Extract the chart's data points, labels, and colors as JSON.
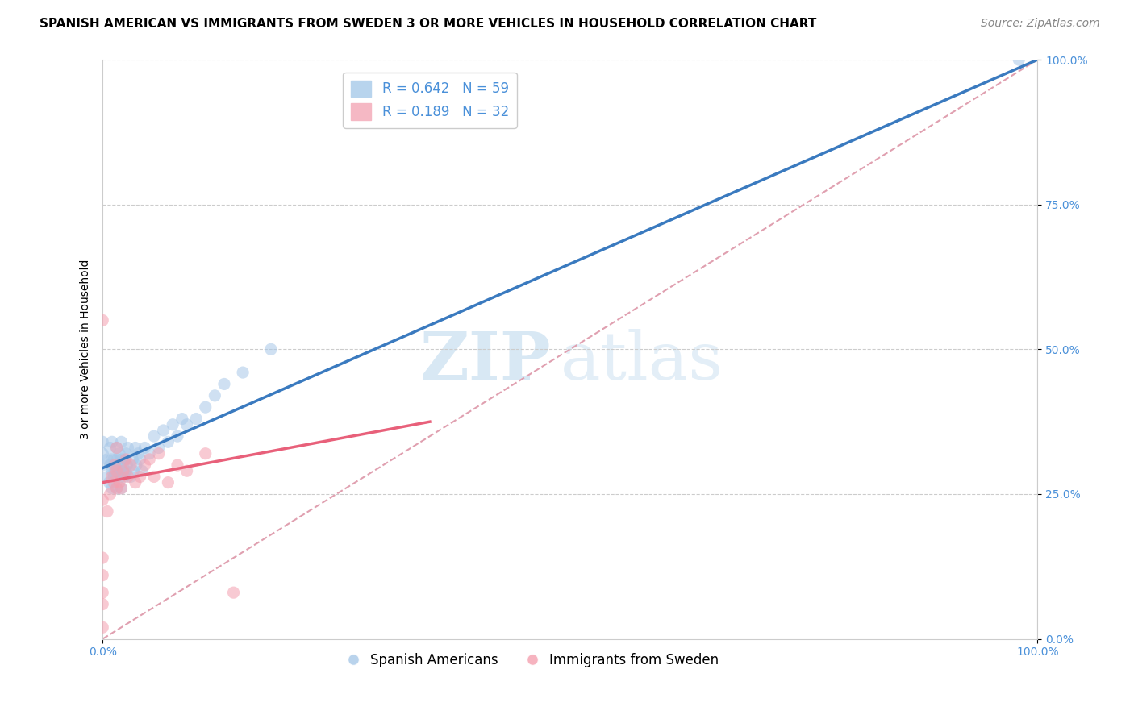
{
  "title": "SPANISH AMERICAN VS IMMIGRANTS FROM SWEDEN 3 OR MORE VEHICLES IN HOUSEHOLD CORRELATION CHART",
  "source": "Source: ZipAtlas.com",
  "ylabel": "3 or more Vehicles in Household",
  "xlim": [
    0,
    1.0
  ],
  "ylim": [
    0,
    1.0
  ],
  "ytick_positions": [
    0.0,
    0.25,
    0.5,
    0.75,
    1.0
  ],
  "ytick_labels": [
    "0.0%",
    "25.0%",
    "50.0%",
    "75.0%",
    "100.0%"
  ],
  "watermark_zip": "ZIP",
  "watermark_atlas": "atlas",
  "blue_R": 0.642,
  "blue_N": 59,
  "pink_R": 0.189,
  "pink_N": 32,
  "blue_color": "#a8c8e8",
  "pink_color": "#f4a0b0",
  "blue_line_color": "#3a7abf",
  "pink_line_color": "#e8607a",
  "diag_line_color": "#e0a0b0",
  "legend_label_blue": "Spanish Americans",
  "legend_label_pink": "Immigrants from Sweden",
  "blue_x": [
    0.0,
    0.0,
    0.0,
    0.005,
    0.005,
    0.007,
    0.008,
    0.008,
    0.01,
    0.01,
    0.01,
    0.01,
    0.012,
    0.012,
    0.013,
    0.015,
    0.015,
    0.015,
    0.015,
    0.016,
    0.017,
    0.018,
    0.019,
    0.02,
    0.02,
    0.02,
    0.02,
    0.022,
    0.023,
    0.024,
    0.025,
    0.025,
    0.026,
    0.027,
    0.03,
    0.032,
    0.033,
    0.035,
    0.036,
    0.038,
    0.04,
    0.042,
    0.045,
    0.05,
    0.055,
    0.06,
    0.065,
    0.07,
    0.075,
    0.08,
    0.085,
    0.09,
    0.1,
    0.11,
    0.12,
    0.13,
    0.15,
    0.18,
    0.98
  ],
  "blue_y": [
    0.3,
    0.32,
    0.34,
    0.28,
    0.31,
    0.27,
    0.3,
    0.33,
    0.26,
    0.29,
    0.31,
    0.34,
    0.28,
    0.31,
    0.29,
    0.26,
    0.28,
    0.3,
    0.33,
    0.31,
    0.29,
    0.32,
    0.28,
    0.26,
    0.29,
    0.31,
    0.34,
    0.3,
    0.28,
    0.31,
    0.29,
    0.32,
    0.3,
    0.33,
    0.28,
    0.31,
    0.29,
    0.33,
    0.3,
    0.32,
    0.31,
    0.29,
    0.33,
    0.32,
    0.35,
    0.33,
    0.36,
    0.34,
    0.37,
    0.35,
    0.38,
    0.37,
    0.38,
    0.4,
    0.42,
    0.44,
    0.46,
    0.5,
    1.0
  ],
  "pink_x": [
    0.0,
    0.0,
    0.0,
    0.0,
    0.0,
    0.0,
    0.0,
    0.005,
    0.008,
    0.01,
    0.012,
    0.013,
    0.015,
    0.015,
    0.015,
    0.018,
    0.02,
    0.022,
    0.025,
    0.027,
    0.03,
    0.035,
    0.04,
    0.045,
    0.05,
    0.055,
    0.06,
    0.07,
    0.08,
    0.09,
    0.11,
    0.14
  ],
  "pink_y": [
    0.02,
    0.06,
    0.08,
    0.11,
    0.14,
    0.24,
    0.55,
    0.22,
    0.25,
    0.28,
    0.27,
    0.3,
    0.26,
    0.29,
    0.33,
    0.27,
    0.26,
    0.29,
    0.31,
    0.28,
    0.3,
    0.27,
    0.28,
    0.3,
    0.31,
    0.28,
    0.32,
    0.27,
    0.3,
    0.29,
    0.32,
    0.08
  ],
  "title_fontsize": 11,
  "source_fontsize": 10,
  "axis_label_fontsize": 10,
  "tick_fontsize": 10,
  "legend_fontsize": 12,
  "scatter_size": 120,
  "scatter_alpha": 0.55
}
